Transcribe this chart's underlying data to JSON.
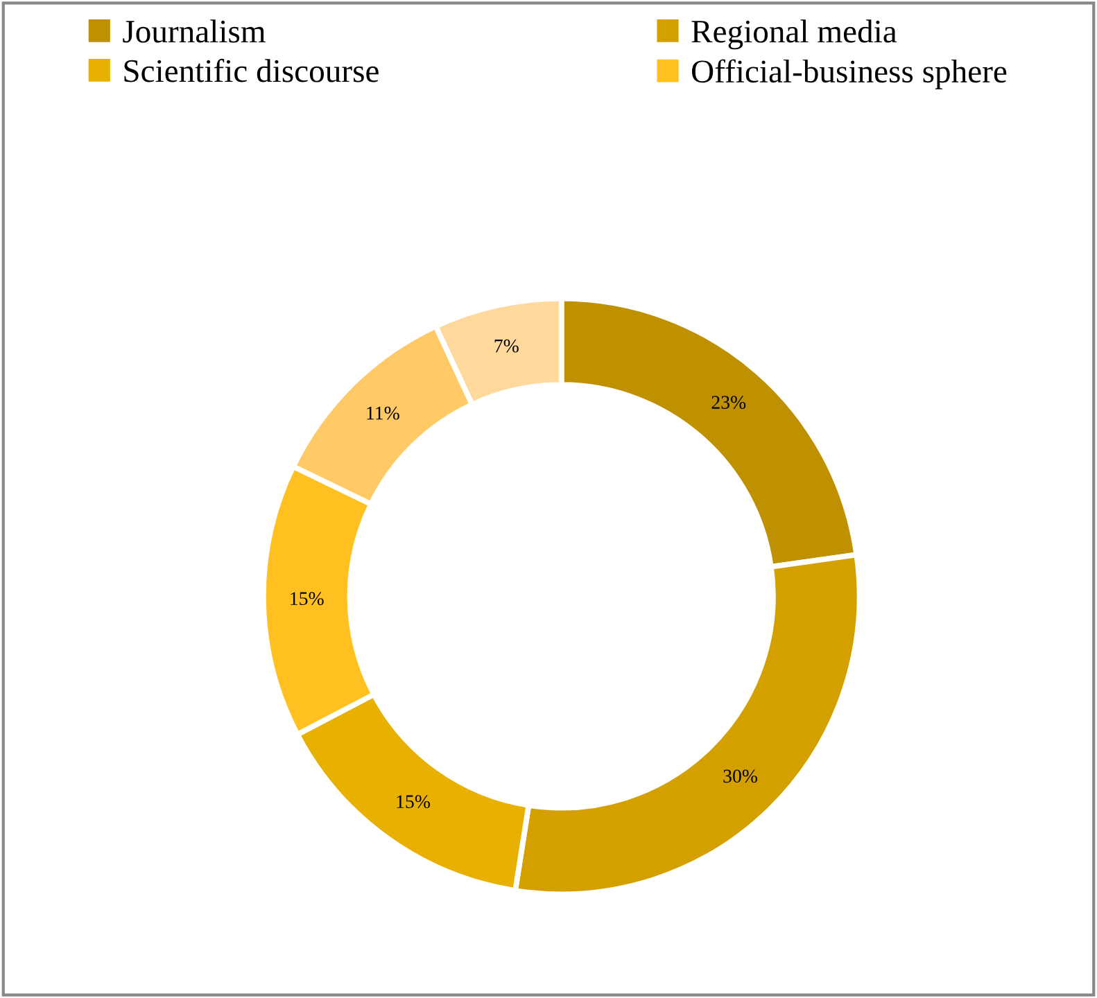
{
  "chart_data": {
    "type": "donut",
    "categories": [
      "Journalism",
      "Regional media",
      "Scientific discourse",
      "Official-business sphere",
      null,
      null
    ],
    "values": [
      23,
      30,
      15,
      15,
      11,
      7
    ],
    "colors": [
      "#bf9000",
      "#d4a000",
      "#e8b000",
      "#ffc020",
      "#ffc966",
      "#ffd89c"
    ],
    "value_labels": [
      "23%",
      "30%",
      "15%",
      "15%",
      "11%",
      "7%"
    ],
    "legend": "top"
  }
}
